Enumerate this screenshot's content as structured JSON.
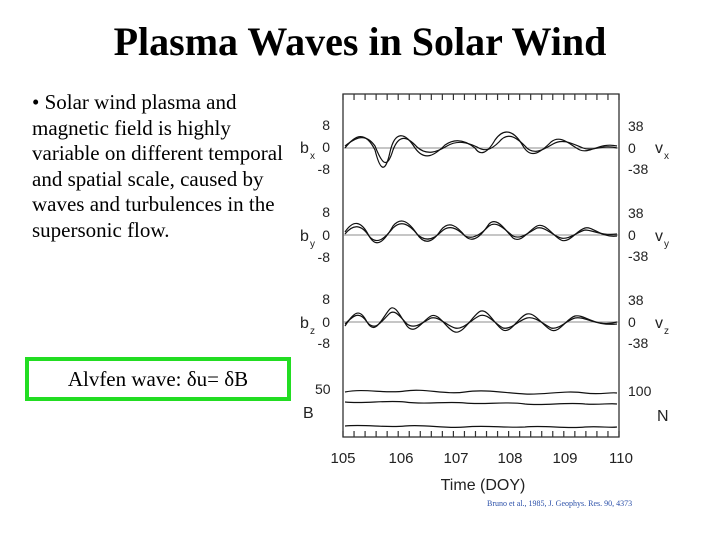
{
  "slide": {
    "title": "Plasma Waves in Solar Wind",
    "bullet": "• Solar wind plasma and magnetic field is highly variable on different temporal and spatial scale, caused by waves and turbulences in the supersonic flow.",
    "alfven_box": "Alvfen wave: δu= δB"
  },
  "figure": {
    "panels": [
      {
        "left_label": "b",
        "left_sub": "x",
        "right_label": "v",
        "right_sub": "x",
        "left_ticks": [
          "8",
          "0",
          "-8"
        ],
        "right_ticks": [
          "38",
          "0",
          "-38"
        ]
      },
      {
        "left_label": "b",
        "left_sub": "y",
        "right_label": "v",
        "right_sub": "y",
        "left_ticks": [
          "8",
          "0",
          "-8"
        ],
        "right_ticks": [
          "38",
          "0",
          "-38"
        ]
      },
      {
        "left_label": "b",
        "left_sub": "z",
        "right_label": "v",
        "right_sub": "z",
        "left_ticks": [
          "8",
          "0",
          "-8"
        ],
        "right_ticks": [
          "38",
          "0",
          "-38"
        ]
      },
      {
        "left_label": "B",
        "left_sub": "",
        "right_label": "N",
        "right_sub": "",
        "left_ticks": [
          "50"
        ],
        "right_ticks": [
          "100"
        ]
      }
    ],
    "x_ticks": [
      "105",
      "106",
      "107",
      "108",
      "109",
      "110"
    ],
    "xlabel": "Time (DOY)",
    "credit": "Bruno et al., 1985, J. Geophys. Res. 90, 4373"
  }
}
